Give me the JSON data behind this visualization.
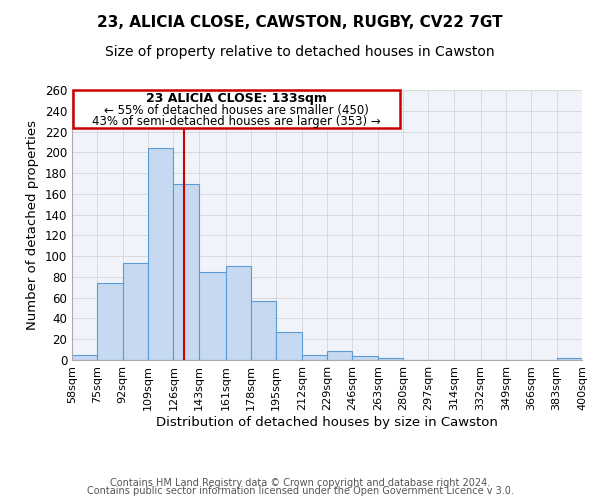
{
  "title": "23, ALICIA CLOSE, CAWSTON, RUGBY, CV22 7GT",
  "subtitle": "Size of property relative to detached houses in Cawston",
  "xlabel": "Distribution of detached houses by size in Cawston",
  "ylabel": "Number of detached properties",
  "bin_edges": [
    58,
    75,
    92,
    109,
    126,
    143,
    161,
    178,
    195,
    212,
    229,
    246,
    263,
    280,
    297,
    314,
    332,
    349,
    366,
    383,
    400
  ],
  "bar_heights": [
    5,
    74,
    93,
    204,
    169,
    85,
    91,
    57,
    27,
    5,
    9,
    4,
    2,
    0,
    0,
    0,
    0,
    0,
    0,
    2
  ],
  "tick_labels": [
    "58sqm",
    "75sqm",
    "92sqm",
    "109sqm",
    "126sqm",
    "143sqm",
    "161sqm",
    "178sqm",
    "195sqm",
    "212sqm",
    "229sqm",
    "246sqm",
    "263sqm",
    "280sqm",
    "297sqm",
    "314sqm",
    "332sqm",
    "349sqm",
    "366sqm",
    "383sqm",
    "400sqm"
  ],
  "bar_color": "#c6d9f0",
  "bar_edge_color": "#5b9bd5",
  "vline_x": 133,
  "vline_color": "#cc0000",
  "annotation_title": "23 ALICIA CLOSE: 133sqm",
  "annotation_line1": "← 55% of detached houses are smaller (450)",
  "annotation_line2": "43% of semi-detached houses are larger (353) →",
  "annotation_box_color": "#cc0000",
  "ylim": [
    0,
    260
  ],
  "yticks": [
    0,
    20,
    40,
    60,
    80,
    100,
    120,
    140,
    160,
    180,
    200,
    220,
    240,
    260
  ],
  "footer1": "Contains HM Land Registry data © Crown copyright and database right 2024.",
  "footer2": "Contains public sector information licensed under the Open Government Licence v 3.0.",
  "title_fontsize": 11,
  "subtitle_fontsize": 10,
  "label_fontsize": 9.5,
  "tick_fontsize": 8,
  "annotation_fontsize": 9,
  "footer_fontsize": 7
}
